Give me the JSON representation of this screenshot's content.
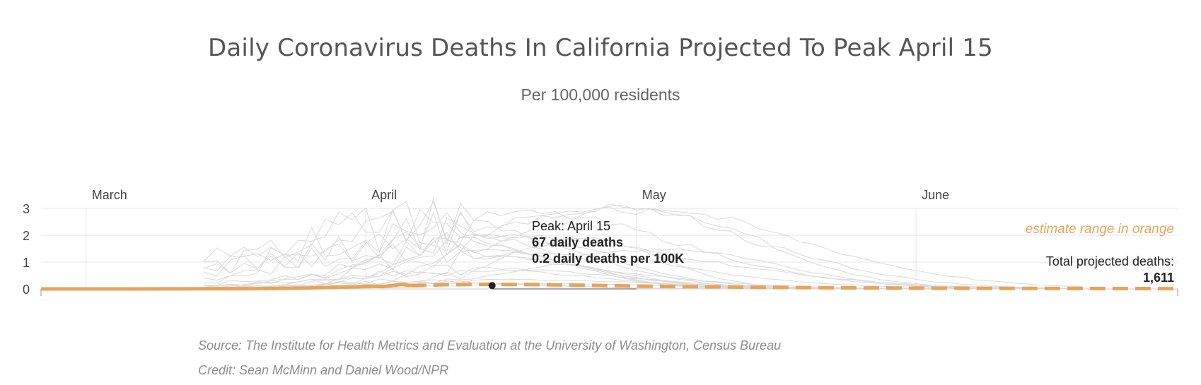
{
  "title": "Daily Coronavirus Deaths In California Projected To Peak April 15",
  "subtitle": "Per 100,000 residents",
  "source": "Source: The Institute for Health Metrics and Evaluation at the University of Washington, Census Bureau",
  "credit": "Credit: Sean McMinn and Daniel Wood/NPR",
  "colors": {
    "estimate": "#e8a35a",
    "context_lines": "#d9d9d9",
    "grid": "#e6e6e6",
    "text": "#333333"
  },
  "chart_data": {
    "type": "line",
    "x_axis": {
      "type": "date",
      "range": [
        "2020-02-25",
        "2020-06-30"
      ],
      "month_labels": [
        {
          "date": "2020-03-01",
          "label": "March"
        },
        {
          "date": "2020-04-01",
          "label": "April"
        },
        {
          "date": "2020-05-01",
          "label": "May"
        },
        {
          "date": "2020-06-01",
          "label": "June"
        }
      ]
    },
    "y_axis": {
      "range": [
        0,
        3
      ],
      "ticks": [
        "0",
        "1",
        "2",
        "3"
      ]
    },
    "grid": true,
    "legend_note": "estimate range in orange",
    "annotation": {
      "date": "2020-04-15",
      "value": 0.17,
      "line1": "Peak: April 15",
      "line2": "67 daily deaths",
      "line3": "0.2 daily deaths per 100K"
    },
    "total": {
      "label": "Total projected deaths:",
      "value": "1,611"
    },
    "series": [
      {
        "style": "actual",
        "x": [
          "2020-02-25",
          "2020-03-01",
          "2020-03-05",
          "2020-03-10",
          "2020-03-15",
          "2020-03-20",
          "2020-03-25",
          "2020-03-28",
          "2020-03-31",
          "2020-04-01",
          "2020-04-03",
          "2020-04-05",
          "2020-04-06"
        ],
        "y": [
          0.0,
          0.0,
          0.0,
          0.002,
          0.005,
          0.01,
          0.03,
          0.06,
          0.08,
          0.1,
          0.09,
          0.17,
          0.12
        ]
      },
      {
        "style": "projected",
        "x": [
          "2020-04-06",
          "2020-04-10",
          "2020-04-15",
          "2020-04-20",
          "2020-04-25",
          "2020-04-30",
          "2020-05-05",
          "2020-05-15",
          "2020-05-25",
          "2020-06-01",
          "2020-06-10",
          "2020-06-20",
          "2020-06-30"
        ],
        "y": [
          0.12,
          0.16,
          0.17,
          0.16,
          0.14,
          0.11,
          0.09,
          0.06,
          0.04,
          0.03,
          0.02,
          0.015,
          0.01
        ]
      }
    ]
  }
}
